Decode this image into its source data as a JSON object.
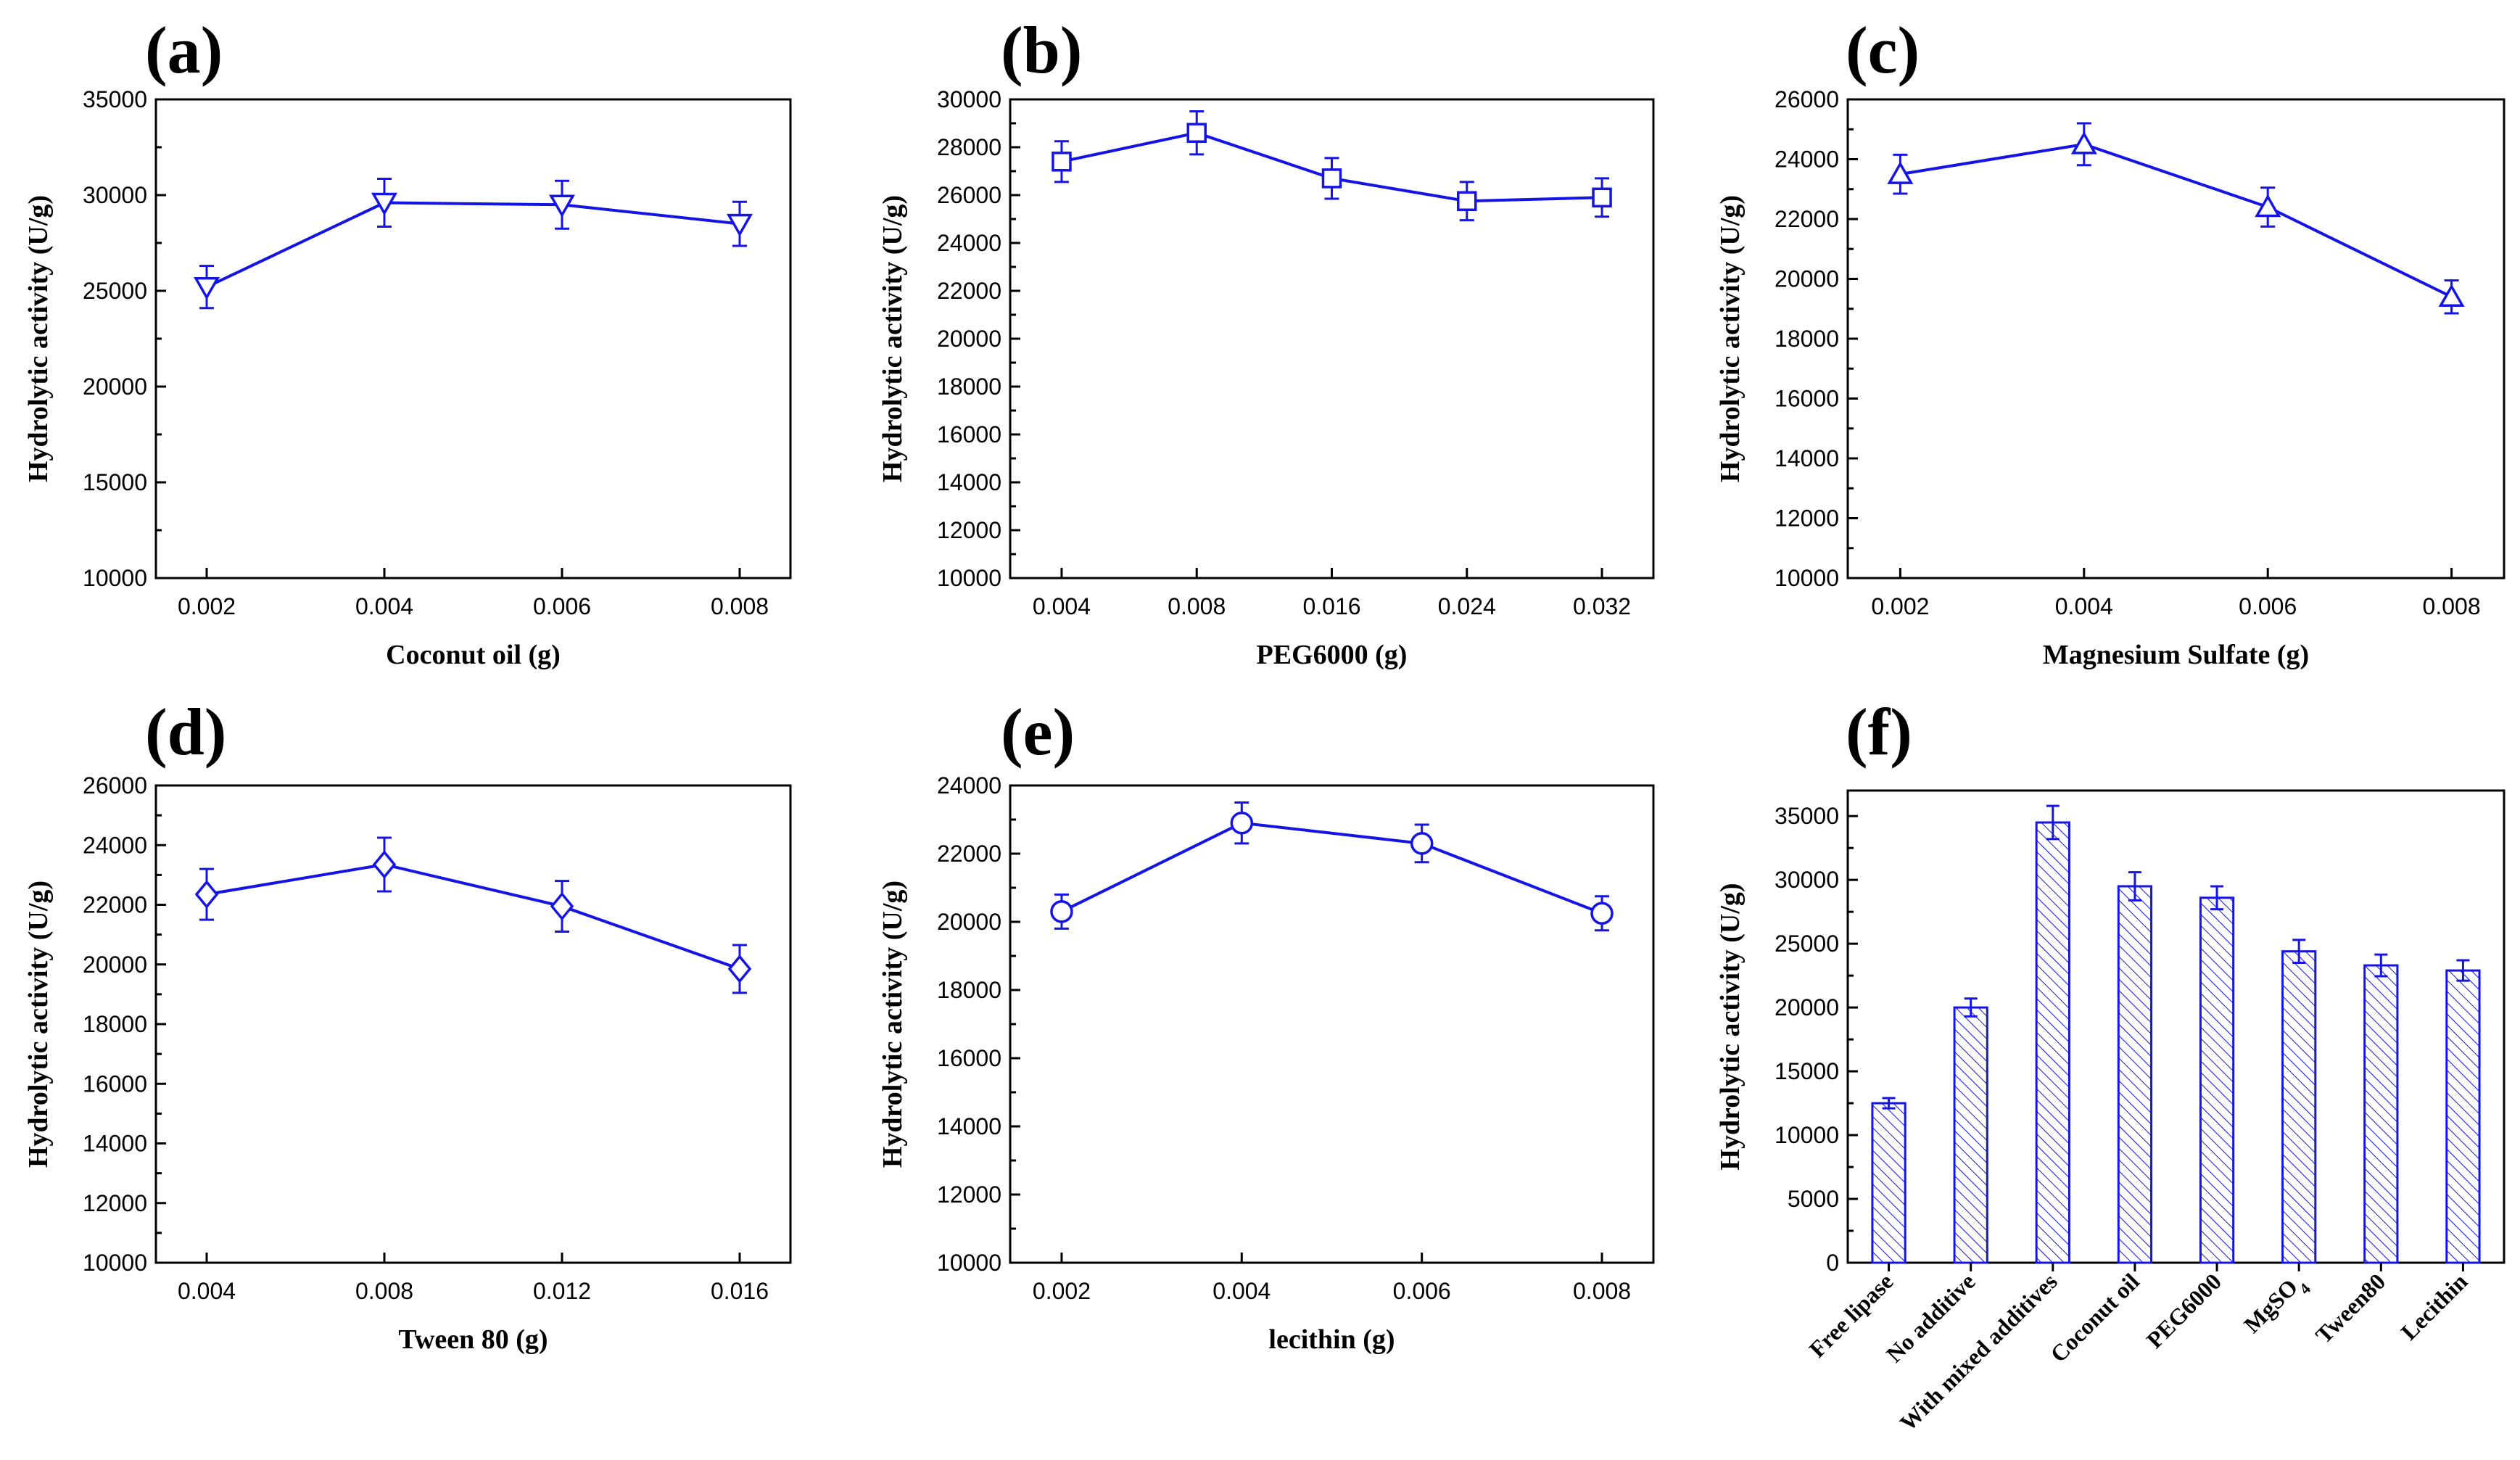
{
  "chart_data": [
    {
      "id": "a",
      "panel_label": "(a)",
      "type": "line",
      "marker": "triangle-down",
      "x": [
        "0.002",
        "0.004",
        "0.006",
        "0.008"
      ],
      "values": [
        25200,
        29600,
        29500,
        28500
      ],
      "errors": [
        1100,
        1250,
        1250,
        1150
      ],
      "xlabel": "Coconut oil (g)",
      "ylabel": "Hydrolytic activity (U/g)",
      "ylim": [
        10000,
        35000
      ],
      "yticks": [
        10000,
        15000,
        20000,
        25000,
        30000,
        35000
      ],
      "color": "#1414e6"
    },
    {
      "id": "b",
      "panel_label": "(b)",
      "type": "line",
      "marker": "square",
      "x": [
        "0.004",
        "0.008",
        "0.016",
        "0.024",
        "0.032"
      ],
      "values": [
        27400,
        28600,
        26700,
        25750,
        25900
      ],
      "errors": [
        850,
        900,
        850,
        800,
        800
      ],
      "xlabel": "PEG6000 (g)",
      "ylabel": "Hydrolytic activity (U/g)",
      "ylim": [
        10000,
        30000
      ],
      "yticks": [
        10000,
        12000,
        14000,
        16000,
        18000,
        20000,
        22000,
        24000,
        26000,
        28000,
        30000
      ],
      "color": "#1414e6"
    },
    {
      "id": "c",
      "panel_label": "(c)",
      "type": "line",
      "marker": "triangle-up",
      "x": [
        "0.002",
        "0.004",
        "0.006",
        "0.008"
      ],
      "values": [
        23500,
        24500,
        22400,
        19400
      ],
      "errors": [
        650,
        700,
        650,
        550
      ],
      "xlabel": "Magnesium Sulfate (g)",
      "ylabel": "Hydrolytic activity (U/g)",
      "ylim": [
        10000,
        26000
      ],
      "yticks": [
        10000,
        12000,
        14000,
        16000,
        18000,
        20000,
        22000,
        24000,
        26000
      ],
      "color": "#1414e6"
    },
    {
      "id": "d",
      "panel_label": "(d)",
      "type": "line",
      "marker": "diamond",
      "x": [
        "0.004",
        "0.008",
        "0.012",
        "0.016"
      ],
      "values": [
        22350,
        23350,
        21950,
        19850
      ],
      "errors": [
        850,
        900,
        850,
        800
      ],
      "xlabel": "Tween 80 (g)",
      "ylabel": "Hydrolytic activity (U/g)",
      "ylim": [
        10000,
        26000
      ],
      "yticks": [
        10000,
        12000,
        14000,
        16000,
        18000,
        20000,
        22000,
        24000,
        26000
      ],
      "color": "#1414e6"
    },
    {
      "id": "e",
      "panel_label": "(e)",
      "type": "line",
      "marker": "circle",
      "x": [
        "0.002",
        "0.004",
        "0.006",
        "0.008"
      ],
      "values": [
        20300,
        22900,
        22300,
        20250
      ],
      "errors": [
        500,
        600,
        550,
        500
      ],
      "xlabel": "lecithin (g)",
      "ylabel": "Hydrolytic activity (U/g)",
      "ylim": [
        10000,
        24000
      ],
      "yticks": [
        10000,
        12000,
        14000,
        16000,
        18000,
        20000,
        22000,
        24000
      ],
      "color": "#1414e6"
    },
    {
      "id": "f",
      "panel_label": "(f)",
      "type": "bar",
      "categories": [
        "Free lipase",
        "No additive",
        "With mixed additives",
        "Coconut oil",
        "PEG6000",
        "MgSO",
        "Tween80",
        "Lecithin"
      ],
      "subscripts": [
        "",
        "",
        "",
        "",
        "",
        "4",
        "",
        ""
      ],
      "values": [
        12500,
        20000,
        34500,
        29500,
        28600,
        24400,
        23300,
        22900
      ],
      "errors": [
        400,
        700,
        1300,
        1100,
        900,
        900,
        850,
        800
      ],
      "xlabel": "",
      "ylabel": "Hydrolytic activity (U/g)",
      "ylim": [
        0,
        37000
      ],
      "yticks": [
        0,
        5000,
        10000,
        15000,
        20000,
        25000,
        30000,
        35000
      ],
      "color": "#1414e6"
    }
  ]
}
